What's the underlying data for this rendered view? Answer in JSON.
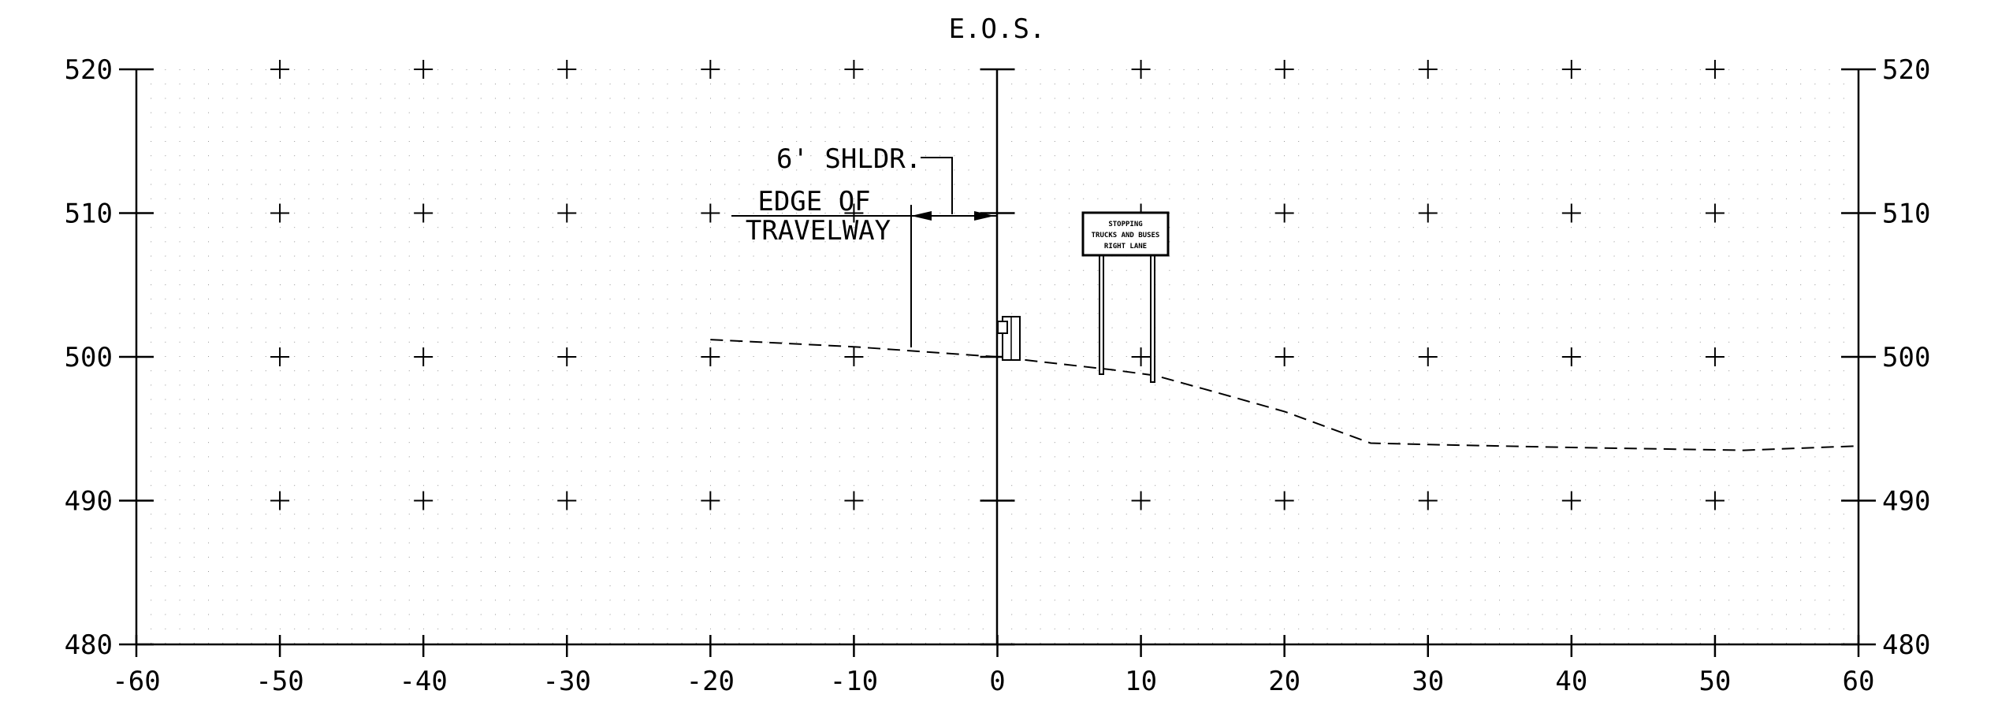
{
  "title": "E.O.S.",
  "axes": {
    "x_ticks": [
      "-60",
      "-50",
      "-40",
      "-30",
      "-20",
      "-10",
      "0",
      "10",
      "20",
      "30",
      "40",
      "50",
      "60"
    ],
    "y_ticks": [
      "520",
      "510",
      "500",
      "490",
      "480"
    ],
    "xlim": [
      -60,
      60
    ],
    "ylim": [
      480,
      520
    ],
    "grid": "crosses at 10 ft, dotted fine grid"
  },
  "annotations": {
    "shoulder": "6' SHLDR.",
    "edge_line1": "EDGE OF",
    "edge_line2": "TRAVELWAY"
  },
  "sign": {
    "line1": "STOPPING",
    "line2": "TRUCKS AND BUSES",
    "line3": "RIGHT LANE"
  },
  "chart_data": {
    "type": "line",
    "title": "E.O.S.",
    "xlabel": "",
    "ylabel": "",
    "xlim": [
      -60,
      60
    ],
    "ylim": [
      480,
      520
    ],
    "series": [
      {
        "style": "dashed",
        "x": [
          -20,
          -10,
          0,
          8,
          11,
          15,
          20,
          26,
          30,
          40,
          52,
          60
        ],
        "y": [
          501.2,
          500.7,
          500.0,
          499.1,
          498.7,
          497.6,
          496.2,
          494.0,
          493.9,
          493.7,
          493.5,
          493.8
        ]
      }
    ]
  }
}
